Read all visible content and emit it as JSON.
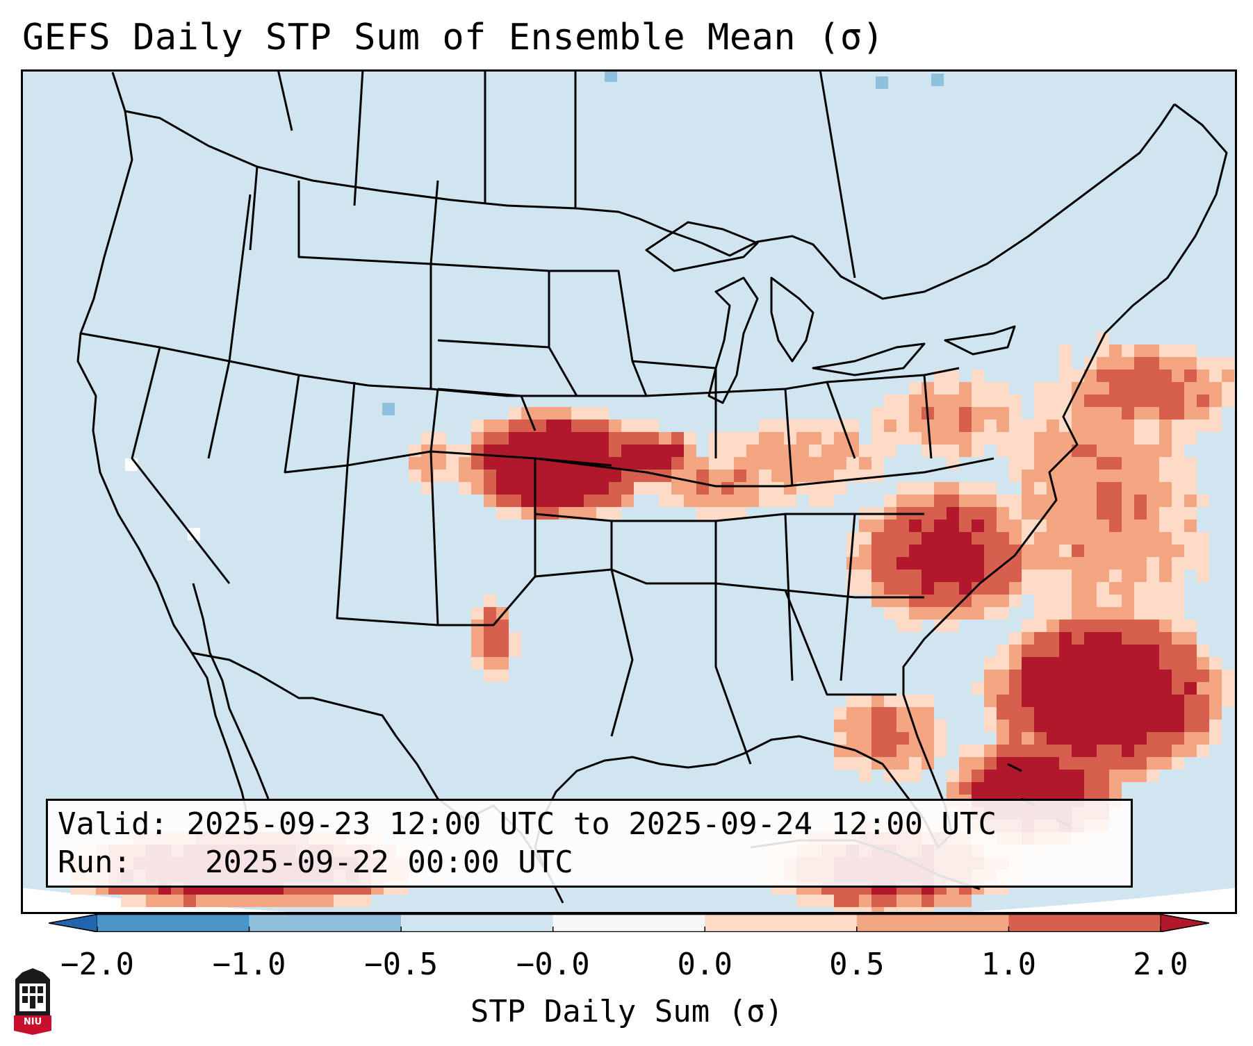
{
  "title": "GEFS Daily STP Sum of Ensemble Mean (σ)",
  "info": {
    "valid_label": "Valid:",
    "valid_value": "2025-09-23 12:00 UTC to 2025-09-24 12:00 UTC",
    "run_label": "Run:",
    "run_value": "2025-09-22 00:00 UTC"
  },
  "colorbar": {
    "label": "STP Daily Sum (σ)",
    "tick_labels": [
      "−2.0",
      "−1.0",
      "−0.5",
      "−0.0",
      "0.0",
      "0.5",
      "1.0",
      "2.0"
    ],
    "bins": [
      {
        "from": -2.0,
        "to": -1.0,
        "color": "#4a94c8"
      },
      {
        "from": -1.0,
        "to": -0.5,
        "color": "#8fc1de"
      },
      {
        "from": -0.5,
        "to": -0.0,
        "color": "#d1e5f0"
      },
      {
        "from": -0.0,
        "to": 0.0,
        "color": "#f7f7f7"
      },
      {
        "from": 0.0,
        "to": 0.5,
        "color": "#fddbc7"
      },
      {
        "from": 0.5,
        "to": 1.0,
        "color": "#f4a582"
      },
      {
        "from": 1.0,
        "to": 2.0,
        "color": "#d6604d"
      }
    ],
    "under_color": "#2166ac",
    "over_color": "#b2182b"
  },
  "map": {
    "background_color": "#d1e5f0",
    "field_colors": {
      "light": "#fddbc7",
      "medium": "#f4a582",
      "strong": "#d6604d",
      "max": "#b2182b",
      "neg_light": "#8fc1de",
      "neutral": "#ffffff"
    }
  },
  "logo": {
    "text": "NIU",
    "icon": "niu-logo-icon"
  }
}
